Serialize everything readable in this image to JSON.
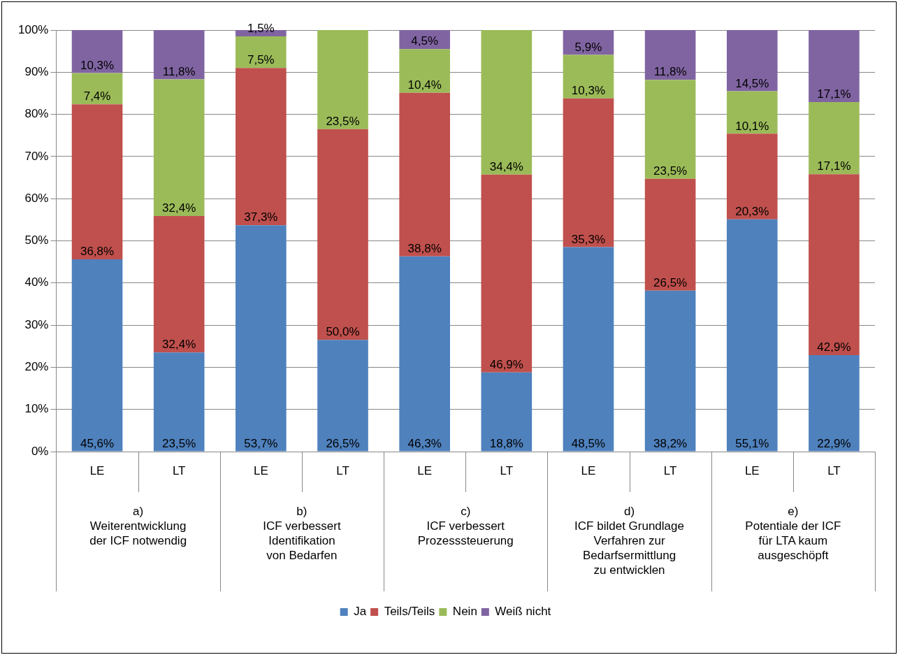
{
  "chart_data": {
    "type": "bar",
    "stacked": true,
    "categories": [
      "LE",
      "LT",
      "LE",
      "LT",
      "LE",
      "LT",
      "LE",
      "LT",
      "LE",
      "LT"
    ],
    "series": [
      {
        "name": "Ja",
        "color": "#4f81bd",
        "values": [
          45.6,
          23.5,
          53.7,
          26.5,
          46.3,
          18.8,
          48.5,
          38.2,
          55.1,
          22.9
        ],
        "value_labels": [
          "45,6%",
          "23,5%",
          "53,7%",
          "26,5%",
          "46,3%",
          "18,8%",
          "48,5%",
          "38,2%",
          "55,1%",
          "22,9%"
        ]
      },
      {
        "name": "Teils/Teils",
        "color": "#c0504d",
        "values": [
          36.8,
          32.4,
          37.3,
          50.0,
          38.8,
          46.9,
          35.3,
          26.5,
          20.3,
          42.9
        ],
        "value_labels": [
          "36,8%",
          "32,4%",
          "37,3%",
          "50,0%",
          "38,8%",
          "46,9%",
          "35,3%",
          "26,5%",
          "20,3%",
          "42,9%"
        ]
      },
      {
        "name": "Nein",
        "color": "#9bbb59",
        "values": [
          7.4,
          32.4,
          7.5,
          23.5,
          10.4,
          34.4,
          10.3,
          23.5,
          10.1,
          17.1
        ],
        "value_labels": [
          "7,4%",
          "32,4%",
          "7,5%",
          "23,5%",
          "10,4%",
          "34,4%",
          "10,3%",
          "23,5%",
          "10,1%",
          "17,1%"
        ]
      },
      {
        "name": "Weiß nicht",
        "color": "#8064a2",
        "values": [
          10.3,
          11.8,
          1.5,
          null,
          4.5,
          null,
          5.9,
          11.8,
          14.5,
          17.1
        ],
        "value_labels": [
          "10,3%",
          "11,8%",
          "1,5%",
          null,
          "4,5%",
          null,
          "5,9%",
          "11,8%",
          "14,5%",
          "17,1%"
        ]
      }
    ],
    "ylim": [
      0,
      100
    ],
    "yticks": [
      {
        "value": 0,
        "label": "0%"
      },
      {
        "value": 10,
        "label": "10%"
      },
      {
        "value": 20,
        "label": "20%"
      },
      {
        "value": 30,
        "label": "30%"
      },
      {
        "value": 40,
        "label": "40%"
      },
      {
        "value": 50,
        "label": "50%"
      },
      {
        "value": 60,
        "label": "60%"
      },
      {
        "value": 70,
        "label": "70%"
      },
      {
        "value": 80,
        "label": "80%"
      },
      {
        "value": 90,
        "label": "90%"
      },
      {
        "value": 100,
        "label": "100%"
      }
    ],
    "grid": "y",
    "legend": "bottom",
    "annotations": [
      "a)\nWeiterentwicklung\nder ICF notwendig",
      "b)\nICF verbessert\nIdentifikation\nvon Bedarfen",
      "c)\nICF verbessert\nProzesssteuerung",
      "d)\nICF bildet Grundlage\nVerfahren zur\nBedarfsermittlung\nzu entwicklen",
      "e)\nPotentiale der ICF\nfür LTA kaum\nausgeschöpft"
    ]
  }
}
